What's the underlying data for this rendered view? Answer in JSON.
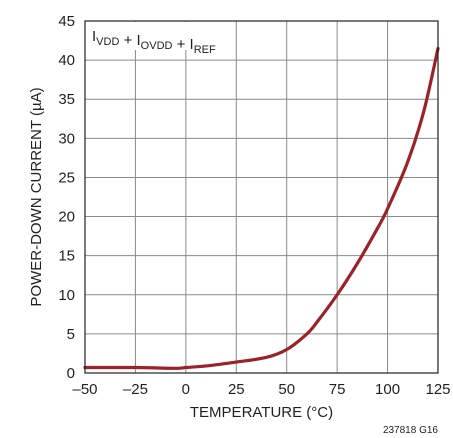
{
  "chart_data": {
    "type": "line",
    "title": "",
    "xlabel": "TEMPERATURE (°C)",
    "ylabel": "POWER-DOWN CURRENT (µA)",
    "xlim": [
      -50,
      125
    ],
    "ylim": [
      0,
      45
    ],
    "xticks": [
      -50,
      -25,
      0,
      25,
      50,
      75,
      100,
      125
    ],
    "yticks": [
      0,
      5,
      10,
      15,
      20,
      25,
      30,
      35,
      40,
      45
    ],
    "xtick_labels": [
      "–50",
      "–25",
      "0",
      "25",
      "50",
      "75",
      "100",
      "125"
    ],
    "ytick_labels": [
      "0",
      "5",
      "10",
      "15",
      "20",
      "25",
      "30",
      "35",
      "40",
      "45"
    ],
    "grid": true,
    "series": [
      {
        "name": "IVDD + IOVDD + IREF",
        "color": "#9b2227",
        "x": [
          -50,
          -25,
          -5,
          0,
          10,
          25,
          40,
          50,
          60,
          65,
          75,
          85,
          95,
          100,
          110,
          118,
          125
        ],
        "y": [
          0.7,
          0.7,
          0.6,
          0.7,
          0.9,
          1.4,
          2.0,
          3.0,
          5.0,
          6.5,
          10.0,
          14.0,
          18.5,
          21.0,
          27.0,
          33.5,
          41.5
        ]
      }
    ],
    "legend": {
      "placement": "top-left",
      "parts": [
        {
          "main": "I",
          "sub": "VDD"
        },
        {
          "main": " + I",
          "sub": "OVDD"
        },
        {
          "main": " + I",
          "sub": "REF"
        }
      ]
    },
    "footnote": "237818 G16"
  }
}
